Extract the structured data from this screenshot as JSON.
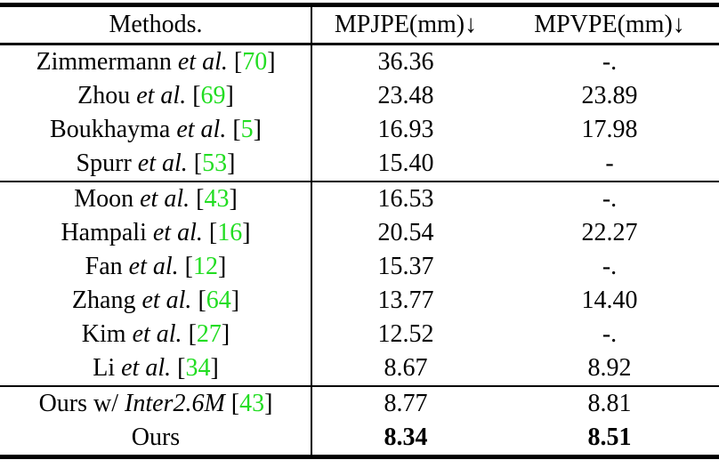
{
  "page": {
    "background": "#ffffff"
  },
  "colors": {
    "citation_green": "#22dd22",
    "text": "#000000",
    "rule": "#000000"
  },
  "table": {
    "header": {
      "methods_label": "Methods.",
      "mpjpe_label": "MPJPE(mm)↓",
      "mpvpe_label": "MPVPE(mm)↓"
    },
    "groups": [
      {
        "rows": [
          {
            "method": [
              {
                "t": "Zimmermann "
              },
              {
                "t": "et al.",
                "i": true
              },
              {
                "t": " ["
              },
              {
                "t": "70",
                "g": true
              },
              {
                "t": "]"
              }
            ],
            "mpjpe": "36.36",
            "mpvpe": "-.",
            "bold": false
          },
          {
            "method": [
              {
                "t": "Zhou "
              },
              {
                "t": "et al.",
                "i": true
              },
              {
                "t": " ["
              },
              {
                "t": "69",
                "g": true
              },
              {
                "t": "]"
              }
            ],
            "mpjpe": "23.48",
            "mpvpe": "23.89",
            "bold": false
          },
          {
            "method": [
              {
                "t": "Boukhayma "
              },
              {
                "t": "et al.",
                "i": true
              },
              {
                "t": " ["
              },
              {
                "t": "5",
                "g": true
              },
              {
                "t": "]"
              }
            ],
            "mpjpe": "16.93",
            "mpvpe": "17.98",
            "bold": false
          },
          {
            "method": [
              {
                "t": "Spurr "
              },
              {
                "t": "et al.",
                "i": true
              },
              {
                "t": " ["
              },
              {
                "t": "53",
                "g": true
              },
              {
                "t": "]"
              }
            ],
            "mpjpe": "15.40",
            "mpvpe": "-",
            "bold": false
          }
        ]
      },
      {
        "rows": [
          {
            "method": [
              {
                "t": "Moon "
              },
              {
                "t": "et al.",
                "i": true
              },
              {
                "t": " ["
              },
              {
                "t": "43",
                "g": true
              },
              {
                "t": "]"
              }
            ],
            "mpjpe": "16.53",
            "mpvpe": "-.",
            "bold": false
          },
          {
            "method": [
              {
                "t": "Hampali "
              },
              {
                "t": "et al.",
                "i": true
              },
              {
                "t": " ["
              },
              {
                "t": "16",
                "g": true
              },
              {
                "t": "]"
              }
            ],
            "mpjpe": "20.54",
            "mpvpe": "22.27",
            "bold": false
          },
          {
            "method": [
              {
                "t": "Fan "
              },
              {
                "t": "et al.",
                "i": true
              },
              {
                "t": " ["
              },
              {
                "t": "12",
                "g": true
              },
              {
                "t": "]"
              }
            ],
            "mpjpe": "15.37",
            "mpvpe": "-.",
            "bold": false
          },
          {
            "method": [
              {
                "t": "Zhang "
              },
              {
                "t": "et al.",
                "i": true
              },
              {
                "t": " ["
              },
              {
                "t": "64",
                "g": true
              },
              {
                "t": "]"
              }
            ],
            "mpjpe": "13.77",
            "mpvpe": "14.40",
            "bold": false
          },
          {
            "method": [
              {
                "t": "Kim "
              },
              {
                "t": "et al.",
                "i": true
              },
              {
                "t": " ["
              },
              {
                "t": "27",
                "g": true
              },
              {
                "t": "]"
              }
            ],
            "mpjpe": "12.52",
            "mpvpe": "-.",
            "bold": false
          },
          {
            "method": [
              {
                "t": "Li "
              },
              {
                "t": "et al.",
                "i": true
              },
              {
                "t": " ["
              },
              {
                "t": "34",
                "g": true
              },
              {
                "t": "]"
              }
            ],
            "mpjpe": "8.67",
            "mpvpe": "8.92",
            "bold": false
          }
        ]
      },
      {
        "rows": [
          {
            "method": [
              {
                "t": "Ours w/ "
              },
              {
                "t": "Inter2.6M",
                "i": true
              },
              {
                "t": " ["
              },
              {
                "t": "43",
                "g": true
              },
              {
                "t": "]"
              }
            ],
            "mpjpe": "8.77",
            "mpvpe": "8.81",
            "bold": false
          },
          {
            "method": [
              {
                "t": "Ours"
              }
            ],
            "mpjpe": "8.34",
            "mpvpe": "8.51",
            "bold": true
          }
        ]
      }
    ]
  }
}
